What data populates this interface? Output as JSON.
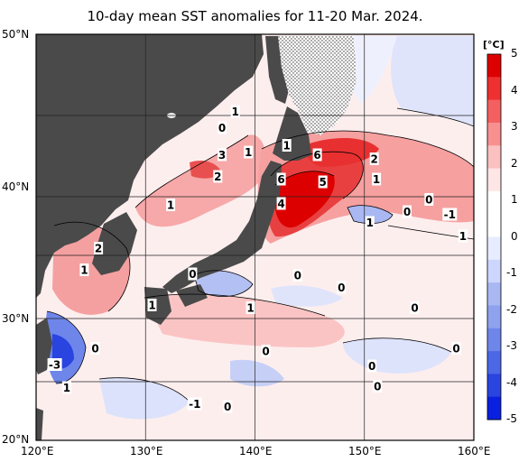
{
  "title": "10-day mean SST anomalies for 11-20 Mar. 2024.",
  "lat_labels": [
    "50°N",
    "40°N",
    "30°N",
    "20°N"
  ],
  "lon_labels": [
    "120°E",
    "130°E",
    "140°E",
    "150°E",
    "160°E"
  ],
  "colorbar": {
    "unit": "[°C]",
    "ticks": [
      "5",
      "4",
      "3",
      "2",
      "1",
      "0",
      "-1",
      "-2",
      "-3",
      "-4",
      "-5"
    ],
    "colors": [
      "#dd0000",
      "#ee3030",
      "#f46060",
      "#f89090",
      "#fbc0c0",
      "#ffe6e6",
      "#ffffff",
      "#ffffff",
      "#e8ecff",
      "#ccd6ff",
      "#a9b8f2",
      "#8ea2ee",
      "#6e86ea",
      "#4c68e6",
      "#2a44e0",
      "#0a20e0"
    ]
  },
  "contour_labels": [
    {
      "text": "1",
      "lon": 138.2,
      "lat": 44.3
    },
    {
      "text": "0",
      "lon": 137.0,
      "lat": 43.1
    },
    {
      "text": "3",
      "lon": 137.0,
      "lat": 41.1
    },
    {
      "text": "1",
      "lon": 139.4,
      "lat": 41.3
    },
    {
      "text": "2",
      "lon": 136.6,
      "lat": 39.5
    },
    {
      "text": "1",
      "lon": 132.3,
      "lat": 37.4
    },
    {
      "text": "1",
      "lon": 142.9,
      "lat": 41.8
    },
    {
      "text": "6",
      "lon": 145.7,
      "lat": 41.1
    },
    {
      "text": "2",
      "lon": 150.9,
      "lat": 40.8
    },
    {
      "text": "6",
      "lon": 142.4,
      "lat": 39.3
    },
    {
      "text": "5",
      "lon": 146.2,
      "lat": 39.1
    },
    {
      "text": "1",
      "lon": 151.1,
      "lat": 39.3
    },
    {
      "text": "4",
      "lon": 142.4,
      "lat": 37.5
    },
    {
      "text": "0",
      "lon": 153.9,
      "lat": 36.9
    },
    {
      "text": "0",
      "lon": 155.9,
      "lat": 37.8
    },
    {
      "text": "-1",
      "lon": 157.8,
      "lat": 36.7
    },
    {
      "text": "1",
      "lon": 150.5,
      "lat": 36.1
    },
    {
      "text": "1",
      "lon": 159.0,
      "lat": 35.1
    },
    {
      "text": "2",
      "lon": 125.7,
      "lat": 34.2
    },
    {
      "text": "1",
      "lon": 124.4,
      "lat": 32.6
    },
    {
      "text": "0",
      "lon": 134.3,
      "lat": 32.3
    },
    {
      "text": "0",
      "lon": 143.9,
      "lat": 32.2
    },
    {
      "text": "0",
      "lon": 147.9,
      "lat": 31.3
    },
    {
      "text": "1",
      "lon": 130.6,
      "lat": 30.0
    },
    {
      "text": "1",
      "lon": 139.6,
      "lat": 29.8
    },
    {
      "text": "0",
      "lon": 154.6,
      "lat": 29.8
    },
    {
      "text": "0",
      "lon": 125.4,
      "lat": 26.8
    },
    {
      "text": "0",
      "lon": 141.0,
      "lat": 26.6
    },
    {
      "text": "0",
      "lon": 158.4,
      "lat": 26.8
    },
    {
      "text": "-3",
      "lon": 121.7,
      "lat": 25.6
    },
    {
      "text": "0",
      "lon": 150.7,
      "lat": 25.5
    },
    {
      "text": "1",
      "lon": 122.8,
      "lat": 23.9
    },
    {
      "text": "0",
      "lon": 151.2,
      "lat": 24.0
    },
    {
      "text": "-1",
      "lon": 134.5,
      "lat": 22.7
    },
    {
      "text": "0",
      "lon": 137.5,
      "lat": 22.5
    }
  ]
}
